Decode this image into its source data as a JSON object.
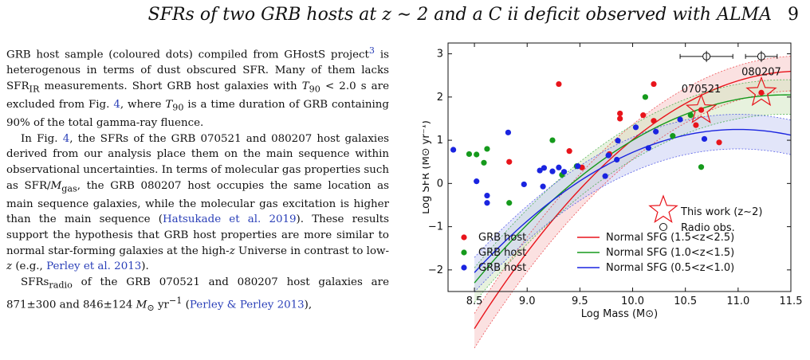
{
  "header": {
    "running_title": "SFRs of two GRB hosts at z ∼ 2 and a C ii deficit observed with ALMA",
    "page_number": "9"
  },
  "body": {
    "p1": {
      "a": "GRB host sample (coloured dots) compiled from GHostS project",
      "fn": "3",
      "b": " is heterogenous in terms of dust obscured SFR. Many of them lacks SFR",
      "b_sub": "IR",
      "c": " measurements. Short GRB host galaxies with ",
      "t90": "T",
      "t90_sub": "90",
      "d": " < 2.0 s are excluded from Fig. ",
      "ref_fig": "4",
      "e": ", where ",
      "f": " is a time duration of GRB containing 90% of the total gamma-ray fluence."
    },
    "p2": {
      "a": "In Fig. ",
      "ref_fig": "4",
      "b": ", the SFRs of the GRB 070521 and 080207 host galaxies derived from our analysis place them on the main sequence within observational uncertainties. In terms of molecular gas properties such as SFR/",
      "mgas": "M",
      "mgas_sub": "gas",
      "c": ", the GRB 080207 host occupies the same location as main sequence galaxies, while the molecular gas excitation is higher than the main sequence (",
      "cite1": "Hatsukade et al. 2019",
      "d": "). These results support the hypothesis that GRB host properties are more similar to normal star-forming galaxies at the high-",
      "z1": "z",
      "e": " Universe in contrast to low-",
      "z2": "z",
      "f": " (e.g., ",
      "cite2": "Perley et al. 2013",
      "g": ")."
    },
    "p3": {
      "a": "SFRs",
      "a_sub": "radio",
      "b": " of the GRB 070521 and 080207 host galaxies are 871±300 and 846±124 ",
      "c": "M",
      "c_sub": "⊙",
      "d": " yr",
      "d_sup": "−1",
      "e": " (",
      "cite": "Perley & Perley 2013",
      "f": "),"
    }
  },
  "chart_data": {
    "type": "scatter",
    "xlabel": "Log Mass (M⊙)",
    "ylabel": "Log SFR (M⊙ yr⁻¹)",
    "xlim": [
      8.25,
      11.5
    ],
    "ylim": [
      -2.5,
      3.25
    ],
    "xticks": [
      "8.5",
      "9.0",
      "9.5",
      "10.0",
      "10.5",
      "11.0",
      "11.5"
    ],
    "yticks": [
      "−2",
      "−1",
      "0",
      "1",
      "2",
      "3"
    ],
    "grid": false,
    "series": [
      {
        "name": "GRB host",
        "color": "#e8141b",
        "group": "1.5<z<2.5",
        "points": [
          [
            8.83,
            0.5
          ],
          [
            9.3,
            2.3
          ],
          [
            9.4,
            0.75
          ],
          [
            9.52,
            0.37
          ],
          [
            9.78,
            0.68
          ],
          [
            9.88,
            1.62
          ],
          [
            9.88,
            1.5
          ],
          [
            10.1,
            1.58
          ],
          [
            10.2,
            2.3
          ],
          [
            10.2,
            1.45
          ],
          [
            10.6,
            1.35
          ],
          [
            10.65,
            1.7
          ],
          [
            10.82,
            0.95
          ],
          [
            11.22,
            2.1
          ]
        ]
      },
      {
        "name": "GRB host",
        "color": "#159a1c",
        "group": "1.0<z<1.5",
        "points": [
          [
            8.45,
            0.68
          ],
          [
            8.52,
            0.67
          ],
          [
            8.59,
            0.48
          ],
          [
            8.62,
            0.8
          ],
          [
            8.83,
            -0.45
          ],
          [
            9.24,
            1.0
          ],
          [
            9.33,
            0.2
          ],
          [
            9.47,
            0.4
          ],
          [
            10.12,
            2.0
          ],
          [
            10.38,
            1.1
          ],
          [
            10.55,
            1.58
          ],
          [
            10.65,
            0.38
          ]
        ]
      },
      {
        "name": "GRB host",
        "color": "#1a24e0",
        "group": "0.5<z<1.0",
        "points": [
          [
            8.3,
            0.78
          ],
          [
            8.52,
            0.05
          ],
          [
            8.62,
            -0.28
          ],
          [
            8.62,
            -0.45
          ],
          [
            8.82,
            1.18
          ],
          [
            8.97,
            -0.02
          ],
          [
            9.12,
            0.3
          ],
          [
            9.15,
            -0.07
          ],
          [
            9.16,
            0.36
          ],
          [
            9.24,
            0.28
          ],
          [
            9.3,
            0.37
          ],
          [
            9.35,
            0.27
          ],
          [
            9.48,
            0.4
          ],
          [
            9.74,
            0.17
          ],
          [
            9.77,
            0.65
          ],
          [
            9.85,
            0.55
          ],
          [
            9.86,
            0.99
          ],
          [
            10.03,
            1.3
          ],
          [
            10.15,
            0.82
          ],
          [
            10.22,
            1.2
          ],
          [
            10.45,
            1.48
          ],
          [
            10.68,
            1.03
          ]
        ]
      }
    ],
    "models": [
      {
        "name": "Normal SFG (1.5<z<2.5)",
        "color": "#e8141b",
        "fill": "#f7c8c8"
      },
      {
        "name": "Normal SFG (1.0<z<1.5)",
        "color": "#159a1c",
        "fill": "#d3e8c2"
      },
      {
        "name": "Normal SFG (0.5<z<1.0)",
        "color": "#1a24e0",
        "fill": "#cbd0f4"
      }
    ],
    "this_work": [
      {
        "label": "070521",
        "mass": 10.65,
        "sfr": 1.7
      },
      {
        "label": "080207",
        "mass": 11.22,
        "sfr": 2.1
      }
    ],
    "radio_obs": [
      {
        "mass": 10.7,
        "sfr": 2.94,
        "xerr": 0.25
      },
      {
        "mass": 11.22,
        "sfr": 2.94,
        "xerr": 0.15
      }
    ],
    "legend_left": [
      "GRB host",
      "GRB host",
      "GRB host"
    ],
    "legend_right": [
      "Normal SFG (1.5<z<2.5)",
      "Normal SFG (1.0<z<1.5)",
      "Normal SFG (0.5<z<1.0)"
    ],
    "legend_star": "This work (z∼2)",
    "legend_radio": "Radio obs."
  }
}
